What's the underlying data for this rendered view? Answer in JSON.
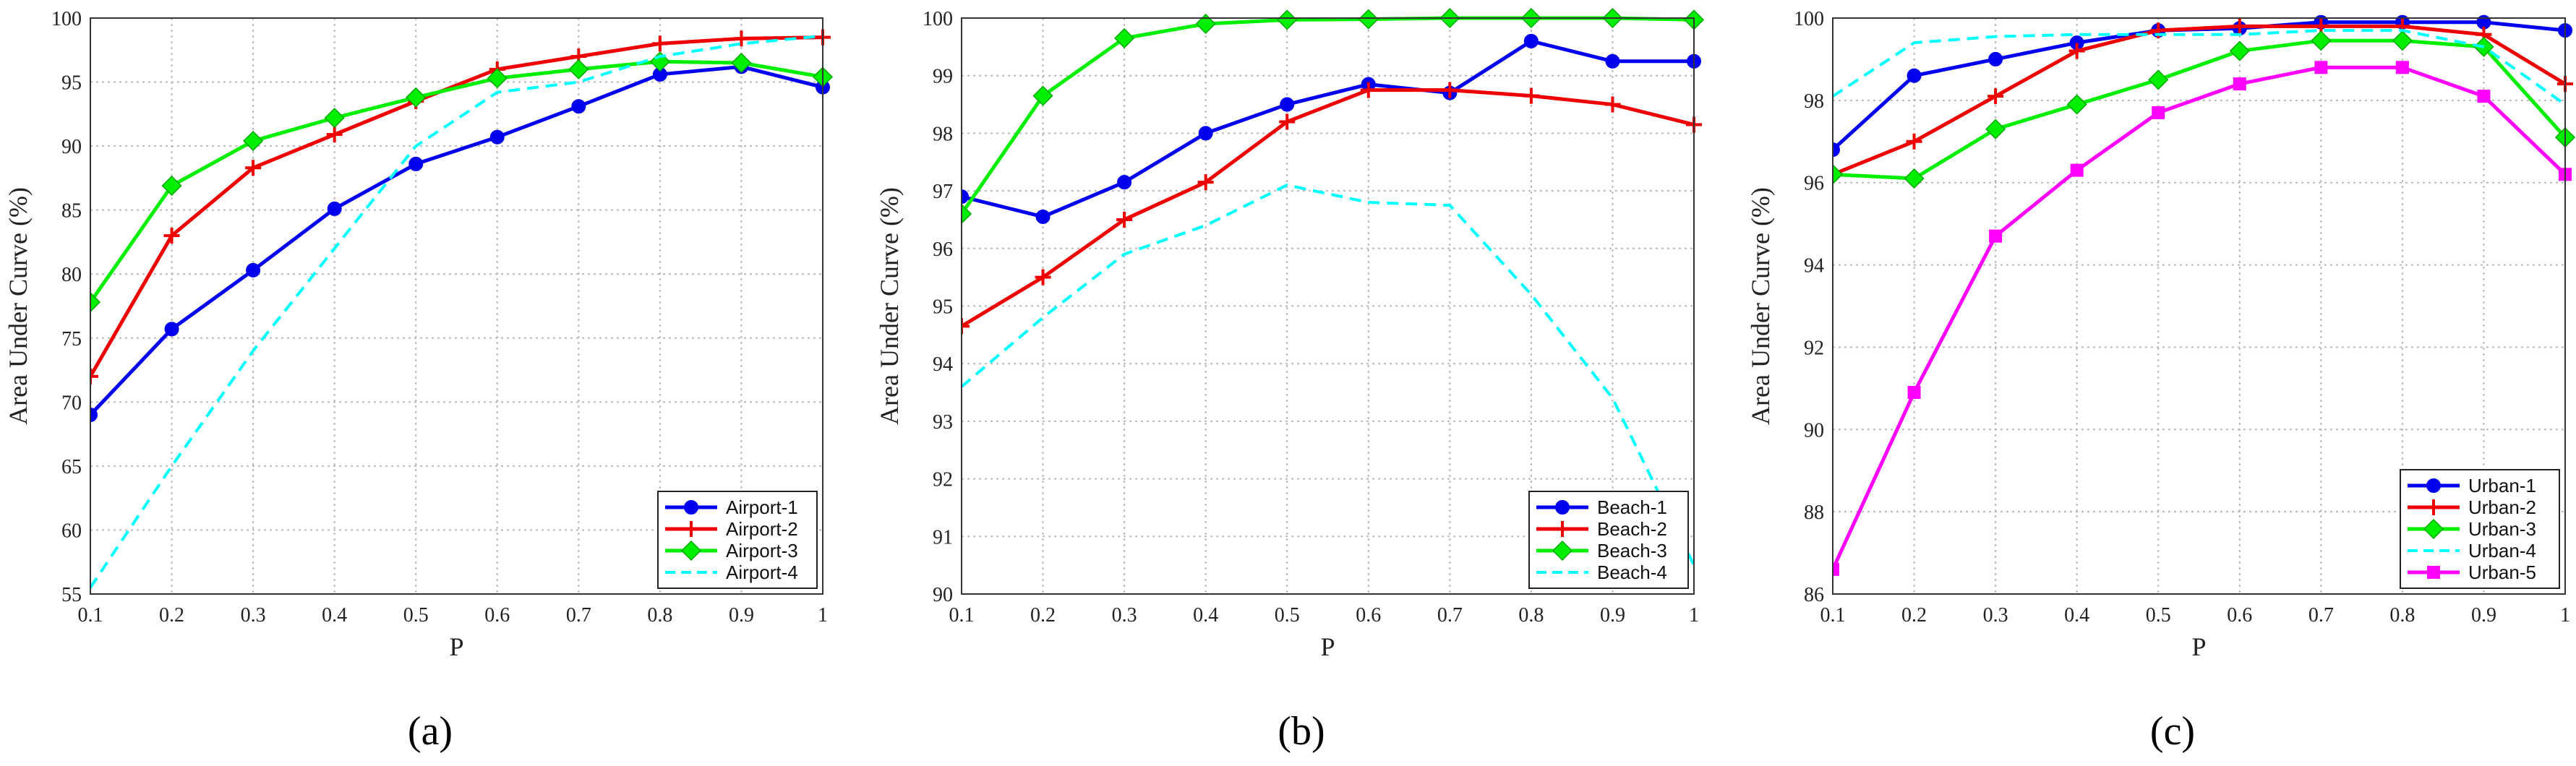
{
  "charts": [
    {
      "panel_label": "(a)",
      "chart_data": {
        "type": "line",
        "xlabel": "P",
        "ylabel": "Area Under Curve (%)",
        "x": [
          0.1,
          0.2,
          0.3,
          0.4,
          0.5,
          0.6,
          0.7,
          0.8,
          0.9,
          1
        ],
        "xticks": [
          "0.1",
          "0.2",
          "0.3",
          "0.4",
          "0.5",
          "0.6",
          "0.7",
          "0.8",
          "0.9",
          "1"
        ],
        "xlim": [
          0.1,
          1
        ],
        "ylim": [
          55,
          100
        ],
        "yticks": [
          55,
          60,
          65,
          70,
          75,
          80,
          85,
          90,
          95,
          100
        ],
        "grid": true,
        "legend_position": "bottom-right",
        "series": [
          {
            "name": "Airport-1",
            "color": "#0000ee",
            "marker": "circle",
            "dashed": false,
            "values": [
              69.0,
              75.7,
              80.3,
              85.1,
              88.6,
              90.7,
              93.1,
              95.6,
              96.2,
              94.6
            ]
          },
          {
            "name": "Airport-2",
            "color": "#ee0000",
            "marker": "plus",
            "dashed": false,
            "values": [
              72.0,
              83.0,
              88.3,
              90.9,
              93.5,
              96.0,
              97.0,
              98.0,
              98.4,
              98.5
            ]
          },
          {
            "name": "Airport-3",
            "color": "#00ee00",
            "marker": "diamond",
            "dashed": false,
            "values": [
              77.8,
              86.9,
              90.4,
              92.2,
              93.8,
              95.3,
              96.0,
              96.6,
              96.5,
              95.4
            ]
          },
          {
            "name": "Airport-4",
            "color": "#00ffff",
            "marker": "none",
            "dashed": true,
            "values": [
              55.5,
              65.0,
              74.0,
              82.0,
              90.0,
              94.2,
              95.0,
              97.0,
              98.0,
              98.6
            ]
          }
        ]
      }
    },
    {
      "panel_label": "(b)",
      "chart_data": {
        "type": "line",
        "xlabel": "P",
        "ylabel": "Area Under Curve (%)",
        "x": [
          0.1,
          0.2,
          0.3,
          0.4,
          0.5,
          0.6,
          0.7,
          0.8,
          0.9,
          1
        ],
        "xticks": [
          "0.1",
          "0.2",
          "0.3",
          "0.4",
          "0.5",
          "0.6",
          "0.7",
          "0.8",
          "0.9",
          "1"
        ],
        "xlim": [
          0.1,
          1
        ],
        "ylim": [
          90,
          100
        ],
        "yticks": [
          90,
          91,
          92,
          93,
          94,
          95,
          96,
          97,
          98,
          99,
          100
        ],
        "grid": true,
        "legend_position": "bottom-right",
        "series": [
          {
            "name": "Beach-1",
            "color": "#0000ee",
            "marker": "circle",
            "dashed": false,
            "values": [
              96.9,
              96.55,
              97.15,
              98.0,
              98.5,
              98.85,
              98.7,
              99.6,
              99.25,
              99.25
            ]
          },
          {
            "name": "Beach-2",
            "color": "#ee0000",
            "marker": "plus",
            "dashed": false,
            "values": [
              94.65,
              95.5,
              96.5,
              97.15,
              98.2,
              98.75,
              98.75,
              98.65,
              98.5,
              98.15
            ]
          },
          {
            "name": "Beach-3",
            "color": "#00ee00",
            "marker": "diamond",
            "dashed": false,
            "values": [
              96.6,
              98.65,
              99.65,
              99.9,
              99.97,
              99.98,
              100.0,
              100.0,
              100.0,
              99.97
            ]
          },
          {
            "name": "Beach-4",
            "color": "#00ffff",
            "marker": "none",
            "dashed": true,
            "values": [
              93.6,
              94.8,
              95.9,
              96.4,
              97.1,
              96.8,
              96.75,
              95.2,
              93.4,
              90.5
            ]
          }
        ]
      }
    },
    {
      "panel_label": "(c)",
      "chart_data": {
        "type": "line",
        "xlabel": "P",
        "ylabel": "Area Under Curve (%)",
        "x": [
          0.1,
          0.2,
          0.3,
          0.4,
          0.5,
          0.6,
          0.7,
          0.8,
          0.9,
          1
        ],
        "xticks": [
          "0.1",
          "0.2",
          "0.3",
          "0.4",
          "0.5",
          "0.6",
          "0.7",
          "0.8",
          "0.9",
          "1"
        ],
        "xlim": [
          0.1,
          1
        ],
        "ylim": [
          86,
          100
        ],
        "yticks": [
          86,
          88,
          90,
          92,
          94,
          96,
          98,
          100
        ],
        "grid": true,
        "legend_position": "bottom-right",
        "series": [
          {
            "name": "Urban-1",
            "color": "#0000ee",
            "marker": "circle",
            "dashed": false,
            "values": [
              96.8,
              98.6,
              99.0,
              99.4,
              99.7,
              99.75,
              99.9,
              99.9,
              99.9,
              99.7
            ]
          },
          {
            "name": "Urban-2",
            "color": "#ee0000",
            "marker": "plus",
            "dashed": false,
            "values": [
              96.2,
              97.0,
              98.1,
              99.2,
              99.7,
              99.8,
              99.8,
              99.8,
              99.6,
              98.4
            ]
          },
          {
            "name": "Urban-3",
            "color": "#00ee00",
            "marker": "diamond",
            "dashed": false,
            "values": [
              96.2,
              96.1,
              97.3,
              97.9,
              98.5,
              99.2,
              99.45,
              99.45,
              99.3,
              97.1
            ]
          },
          {
            "name": "Urban-4",
            "color": "#00ffff",
            "marker": "none",
            "dashed": true,
            "values": [
              98.1,
              99.4,
              99.55,
              99.6,
              99.6,
              99.6,
              99.7,
              99.7,
              99.3,
              97.9
            ]
          },
          {
            "name": "Urban-5",
            "color": "#ff00ff",
            "marker": "square",
            "dashed": false,
            "values": [
              86.6,
              90.9,
              94.7,
              96.3,
              97.7,
              98.4,
              98.8,
              98.8,
              98.1,
              96.2
            ]
          }
        ]
      }
    }
  ]
}
